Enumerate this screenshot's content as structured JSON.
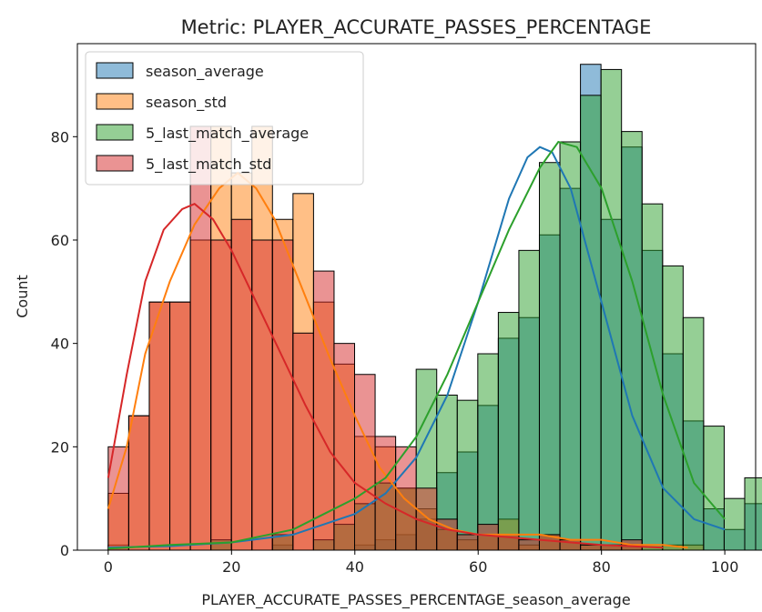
{
  "chart_data": {
    "type": "bar",
    "title": "Metric: PLAYER_ACCURATE_PASSES_PERCENTAGE",
    "xlabel": "PLAYER_ACCURATE_PASSES_PERCENTAGE_season_average",
    "ylabel": "Count",
    "xlim": [
      -5,
      105
    ],
    "ylim": [
      0,
      98
    ],
    "x_ticks": [
      0,
      20,
      40,
      60,
      80,
      100
    ],
    "y_ticks": [
      0,
      20,
      40,
      60,
      80
    ],
    "legend_position": "top-left",
    "grid": false,
    "bin_width": 3.33,
    "series": [
      {
        "name": "season_average",
        "color": "#1f77b4",
        "bin_start": 0,
        "bin_width": 3.33,
        "values": [
          1,
          0,
          0,
          0,
          0,
          0,
          0,
          0,
          1,
          0,
          0,
          0,
          1,
          2,
          3,
          6,
          15,
          19,
          28,
          41,
          45,
          61,
          70,
          94,
          64,
          78,
          58,
          38,
          25,
          8,
          4,
          9
        ],
        "kde": [
          [
            0,
            0.5
          ],
          [
            10,
            0.8
          ],
          [
            20,
            1.5
          ],
          [
            30,
            3
          ],
          [
            40,
            7
          ],
          [
            45,
            11
          ],
          [
            50,
            18
          ],
          [
            55,
            30
          ],
          [
            60,
            48
          ],
          [
            65,
            68
          ],
          [
            68,
            76
          ],
          [
            70,
            78
          ],
          [
            72,
            77
          ],
          [
            75,
            70
          ],
          [
            80,
            48
          ],
          [
            85,
            26
          ],
          [
            90,
            12
          ],
          [
            95,
            6
          ],
          [
            100,
            4
          ]
        ]
      },
      {
        "name": "season_std",
        "color": "#ff7f0e",
        "bin_start": 0,
        "bin_width": 3.33,
        "values": [
          11,
          26,
          48,
          48,
          60,
          82,
          73,
          82,
          64,
          69,
          48,
          36,
          22,
          20,
          12,
          8,
          4,
          2,
          3,
          6,
          1,
          3,
          2,
          1,
          1,
          1,
          1,
          1,
          1,
          0,
          0,
          0,
          0
        ],
        "kde": [
          [
            0,
            8
          ],
          [
            3,
            20
          ],
          [
            6,
            38
          ],
          [
            10,
            52
          ],
          [
            14,
            63
          ],
          [
            18,
            70
          ],
          [
            21,
            73
          ],
          [
            24,
            70
          ],
          [
            27,
            64
          ],
          [
            30,
            55
          ],
          [
            33,
            46
          ],
          [
            36,
            37
          ],
          [
            40,
            26
          ],
          [
            44,
            16
          ],
          [
            48,
            10
          ],
          [
            52,
            6
          ],
          [
            56,
            4
          ],
          [
            60,
            3
          ],
          [
            65,
            3
          ],
          [
            70,
            3
          ],
          [
            75,
            2
          ],
          [
            80,
            2
          ],
          [
            85,
            1
          ],
          [
            90,
            1
          ],
          [
            94,
            0.5
          ]
        ]
      },
      {
        "name": "5_last_match_average",
        "color": "#2ca02c",
        "bin_start": 0,
        "bin_width": 3.33,
        "values": [
          0,
          0,
          0,
          0,
          0,
          2,
          0,
          0,
          3,
          0,
          2,
          5,
          9,
          13,
          12,
          35,
          30,
          29,
          38,
          46,
          58,
          75,
          79,
          88,
          93,
          81,
          67,
          55,
          45,
          24,
          10,
          14
        ],
        "kde": [
          [
            0,
            0.3
          ],
          [
            10,
            1
          ],
          [
            20,
            1.5
          ],
          [
            30,
            4
          ],
          [
            35,
            7
          ],
          [
            40,
            10
          ],
          [
            45,
            14
          ],
          [
            50,
            22
          ],
          [
            55,
            34
          ],
          [
            60,
            48
          ],
          [
            65,
            62
          ],
          [
            70,
            74
          ],
          [
            73,
            79
          ],
          [
            76,
            78
          ],
          [
            80,
            70
          ],
          [
            85,
            52
          ],
          [
            90,
            30
          ],
          [
            95,
            13
          ],
          [
            100,
            6
          ]
        ]
      },
      {
        "name": "5_last_match_std",
        "color": "#d62728",
        "bin_start": 0,
        "bin_width": 3.33,
        "values": [
          20,
          26,
          48,
          48,
          82,
          60,
          64,
          60,
          60,
          42,
          54,
          40,
          34,
          22,
          20,
          12,
          6,
          3,
          5,
          3,
          2,
          3,
          2,
          1,
          1,
          2,
          0,
          0,
          0,
          0,
          0
        ],
        "kde": [
          [
            0,
            14
          ],
          [
            3,
            34
          ],
          [
            6,
            52
          ],
          [
            9,
            62
          ],
          [
            12,
            66
          ],
          [
            14,
            67
          ],
          [
            17,
            64
          ],
          [
            20,
            58
          ],
          [
            24,
            48
          ],
          [
            28,
            38
          ],
          [
            32,
            28
          ],
          [
            36,
            19
          ],
          [
            40,
            13
          ],
          [
            45,
            9
          ],
          [
            50,
            6
          ],
          [
            55,
            4
          ],
          [
            60,
            3
          ],
          [
            70,
            2
          ],
          [
            80,
            1
          ],
          [
            90,
            0.5
          ]
        ]
      }
    ]
  }
}
